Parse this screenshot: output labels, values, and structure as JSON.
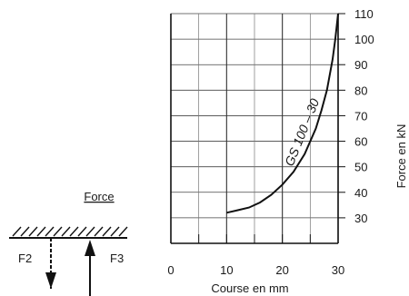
{
  "chart_data": {
    "type": "line",
    "xlabel": "Course en mm",
    "ylabel": "Force en kN",
    "xlim": [
      0,
      30
    ],
    "ylim": [
      20,
      110
    ],
    "x_ticks": [
      "0",
      "10",
      "20",
      "30"
    ],
    "y_ticks": [
      "30",
      "40",
      "50",
      "60",
      "70",
      "80",
      "90",
      "100",
      "110"
    ],
    "grid": true,
    "series": [
      {
        "name": "GS 100 – 30",
        "x": [
          10,
          12,
          14,
          16,
          18,
          20,
          22,
          24,
          26,
          27,
          28,
          29,
          29.5,
          30
        ],
        "y": [
          32,
          33,
          34,
          36,
          39,
          43,
          48,
          55,
          65,
          72,
          80,
          92,
          100,
          110
        ]
      }
    ]
  },
  "diagram": {
    "force_label": "Force",
    "f2_label": "F2",
    "f3_label": "F3"
  }
}
